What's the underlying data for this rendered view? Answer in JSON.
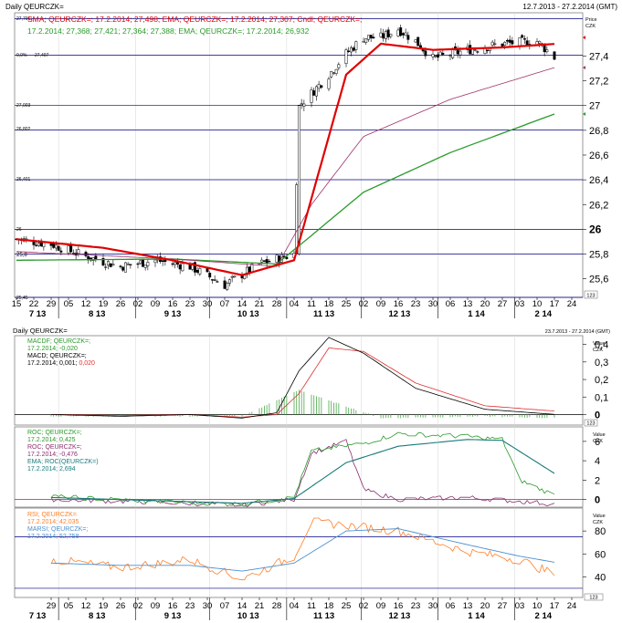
{
  "header": {
    "title": "Daily QEURCZK=",
    "date_range": "12.7.2013 - 27.2.2014 (GMT)"
  },
  "price_panel": {
    "legend_line1": "SMA; QEURCZK=; 17.2.2014; 27,498; EMA; QEURCZK=; 17.2.2014; 27,307; Cndl; QEURCZK=;",
    "legend_line2": "17.2.2014; 27,368; 27,421; 27,364; 27,388; EMA; QEURCZK=; 17.2.2014; 26,932",
    "unit_label_1": "Price",
    "unit_label_2": "CZK",
    "y_ticks": [
      "27,4",
      "27,2",
      "27",
      "26,8",
      "26,6",
      "26,4",
      "26,2",
      "26",
      "25,8",
      "25,6"
    ],
    "level_labels": [
      "27,701",
      "27,407",
      "27,003",
      "26,802",
      "26,401",
      "26",
      "25,8",
      "25,45"
    ],
    "fib_label": "0,0%",
    "scale_box": "123"
  },
  "date_axis_top": {
    "days": [
      "15",
      "22",
      "29",
      "05",
      "12",
      "19",
      "26",
      "02",
      "09",
      "16",
      "23",
      "30",
      "07",
      "14",
      "21",
      "28",
      "04",
      "11",
      "18",
      "25",
      "02",
      "09",
      "16",
      "23",
      "30",
      "06",
      "13",
      "20",
      "27",
      "03",
      "10",
      "17",
      "24"
    ],
    "months": [
      "7 13",
      "8 13",
      "9 13",
      "10 13",
      "11 13",
      "12 13",
      "1 14",
      "2 14"
    ]
  },
  "macd_panel": {
    "title": "Daily QEURCZK=",
    "date_range": "23.7.2013 - 27.2.2014 (GMT)",
    "legend_line1": "MACDF; QEURCZK=;",
    "legend_line2": "17.2.2014; -0,020",
    "legend_line3": "MACD; QEURCZK=;",
    "legend_line4": "17.2.2014; 0,001; 0,020",
    "unit_label_1": "Value",
    "unit_label_2": "CZK",
    "y_ticks": [
      "0,4",
      "0,3",
      "0,2",
      "0,1",
      "0"
    ],
    "scale_box": "123"
  },
  "roc_panel": {
    "legend_line1": "ROC; QEURCZK=;",
    "legend_line2": "17.2.2014; 0,425",
    "legend_line3": "ROC; QEURCZK=;",
    "legend_line4": "17.2.2014; -0,476",
    "legend_line5": "EMA; ROC(QEURCZK=)",
    "legend_line6": "17.2.2014; 2,694",
    "unit_label_1": "Value",
    "unit_label_2": "CZK",
    "y_ticks": [
      "6",
      "4",
      "2",
      "0"
    ],
    "scale_box": "123"
  },
  "rsi_panel": {
    "legend_line1": "RSI; QEURCZK=",
    "legend_line2": "17.2.2014; 42,035",
    "legend_line3": "MARSI; QEURCZK=;",
    "legend_line4": "17.2.2014; 52,758",
    "unit_label_1": "Value",
    "unit_label_2": "CZK",
    "y_ticks": [
      "80",
      "60",
      "40"
    ],
    "scale_box": "123"
  },
  "date_axis_bottom": {
    "days": [
      "29",
      "05",
      "12",
      "19",
      "26",
      "02",
      "09",
      "16",
      "23",
      "30",
      "07",
      "14",
      "21",
      "28",
      "04",
      "11",
      "18",
      "25",
      "02",
      "09",
      "16",
      "23",
      "30",
      "06",
      "13",
      "20",
      "27",
      "03",
      "10",
      "17",
      "24"
    ],
    "months": [
      "7 13",
      "8 13",
      "9 13",
      "10 13",
      "11 13",
      "12 13",
      "1 14",
      "2 14"
    ]
  },
  "colors": {
    "sma": "#e00000",
    "ema_short": "#a0306a",
    "ema_long": "#2a9a2a",
    "candle": "#000000",
    "macd": "#000000",
    "macd_signal": "#e03030",
    "macd_hist": "#4aa84a",
    "roc1": "#2a9a2a",
    "roc2": "#8a3070",
    "roc_ema": "#1a7a7a",
    "rsi": "#ff7f27",
    "marsi": "#4a90d0",
    "hline": "#000080",
    "grid": "#c8c8c8"
  },
  "chart_data": [
    {
      "type": "line",
      "subtype": "candlestick",
      "title": "Daily QEURCZK=",
      "ylabel": "Price CZK",
      "ylim": [
        25.45,
        27.75
      ],
      "x_range": [
        "15.7.2013",
        "24.2.2014"
      ],
      "series": [
        {
          "name": "Cndl; QEURCZK= (close)",
          "x": [
            "15.7.2013",
            "29.7.2013",
            "12.8.2013",
            "26.8.2013",
            "09.9.2013",
            "23.9.2013",
            "07.10.2013",
            "21.10.2013",
            "04.11.2013",
            "06.11.2013",
            "11.11.2013",
            "18.11.2013",
            "25.11.2013",
            "02.12.2013",
            "09.12.2013",
            "16.12.2013",
            "23.12.2013",
            "30.12.2013",
            "13.1.2014",
            "27.1.2014",
            "10.2.2014",
            "17.2.2014"
          ],
          "values": [
            25.92,
            25.88,
            25.78,
            25.7,
            25.75,
            25.7,
            25.55,
            25.72,
            25.8,
            27.0,
            27.1,
            27.25,
            27.42,
            27.55,
            27.55,
            27.62,
            27.52,
            27.38,
            27.45,
            27.5,
            27.52,
            27.39
          ]
        },
        {
          "name": "SMA; QEURCZK=",
          "x": [
            "15.7.2013",
            "19.8.2013",
            "16.9.2013",
            "14.10.2013",
            "04.11.2013",
            "25.11.2013",
            "09.12.2013",
            "30.12.2013",
            "27.1.2014",
            "17.2.2014"
          ],
          "values": [
            25.92,
            25.85,
            25.75,
            25.63,
            25.75,
            27.25,
            27.5,
            27.45,
            27.47,
            27.498
          ]
        },
        {
          "name": "EMA; QEURCZK= (27,307)",
          "x": [
            "15.7.2013",
            "16.9.2013",
            "28.10.2013",
            "11.11.2013",
            "02.12.2013",
            "06.1.2014",
            "17.2.2014"
          ],
          "values": [
            25.82,
            25.76,
            25.7,
            26.2,
            26.75,
            27.05,
            27.307
          ]
        },
        {
          "name": "EMA; QEURCZK= (26,932)",
          "x": [
            "15.7.2013",
            "16.9.2013",
            "28.10.2013",
            "11.11.2013",
            "02.12.2013",
            "06.1.2014",
            "17.2.2014"
          ],
          "values": [
            25.75,
            25.76,
            25.72,
            25.95,
            26.3,
            26.62,
            26.932
          ]
        }
      ],
      "horizontal_levels": [
        27.701,
        27.407,
        27.003,
        26.802,
        26.401,
        26.0,
        25.8,
        25.45
      ]
    },
    {
      "type": "line",
      "title": "MACD",
      "ylabel": "Value CZK",
      "ylim": [
        -0.06,
        0.45
      ],
      "x_range": [
        "23.7.2013",
        "24.2.2014"
      ],
      "series": [
        {
          "name": "MACD; QEURCZK=",
          "x": [
            "29.7.2013",
            "26.8.2013",
            "23.9.2013",
            "14.10.2013",
            "28.10.2013",
            "06.11.2013",
            "18.11.2013",
            "02.12.2013",
            "23.12.2013",
            "20.1.2014",
            "17.2.2014"
          ],
          "values": [
            0.0,
            -0.01,
            0.0,
            -0.02,
            0.01,
            0.25,
            0.44,
            0.35,
            0.15,
            0.03,
            0.001
          ]
        },
        {
          "name": "MACD signal",
          "x": [
            "29.7.2013",
            "26.8.2013",
            "23.9.2013",
            "14.10.2013",
            "28.10.2013",
            "06.11.2013",
            "18.11.2013",
            "02.12.2013",
            "23.12.2013",
            "20.1.2014",
            "17.2.2014"
          ],
          "values": [
            0.0,
            -0.005,
            0.0,
            -0.015,
            0.0,
            0.12,
            0.38,
            0.36,
            0.18,
            0.05,
            0.02
          ]
        },
        {
          "name": "MACDF; QEURCZK=",
          "x": [
            "14.10.2013",
            "06.11.2013",
            "18.11.2013",
            "09.12.2013",
            "20.1.2014",
            "17.2.2014"
          ],
          "values": [
            -0.01,
            0.14,
            0.08,
            -0.02,
            -0.01,
            -0.02
          ]
        }
      ]
    },
    {
      "type": "line",
      "title": "ROC",
      "ylabel": "Value CZK",
      "ylim": [
        -0.8,
        7.5
      ],
      "series": [
        {
          "name": "ROC; QEURCZK= (0,425)",
          "x": [
            "29.7.2013",
            "09.9.2013",
            "14.10.2013",
            "04.11.2013",
            "11.11.2013",
            "02.12.2013",
            "16.12.2013",
            "13.1.2014",
            "27.1.2014",
            "03.2.2014",
            "17.2.2014"
          ],
          "values": [
            0.3,
            -0.2,
            -0.5,
            0.2,
            5.0,
            5.8,
            6.8,
            6.5,
            6.2,
            2.0,
            0.425
          ]
        },
        {
          "name": "ROC; QEURCZK= (-0,476)",
          "x": [
            "29.7.2013",
            "09.9.2013",
            "14.10.2013",
            "04.11.2013",
            "11.11.2013",
            "25.11.2013",
            "02.12.2013",
            "16.12.2013",
            "13.1.2014",
            "17.2.2014"
          ],
          "values": [
            0.0,
            -0.3,
            -0.6,
            0.0,
            4.8,
            6.0,
            1.0,
            0.0,
            0.2,
            -0.476
          ]
        },
        {
          "name": "EMA; ROC(QEURCZK=)",
          "x": [
            "29.7.2013",
            "14.10.2013",
            "04.11.2013",
            "25.11.2013",
            "16.12.2013",
            "13.1.2014",
            "27.1.2014",
            "17.2.2014"
          ],
          "values": [
            0.2,
            -0.4,
            0.1,
            3.8,
            5.5,
            6.2,
            6.1,
            2.694
          ]
        }
      ]
    },
    {
      "type": "line",
      "title": "RSI",
      "ylabel": "Value CZK",
      "ylim": [
        22,
        100
      ],
      "series": [
        {
          "name": "RSI; QEURCZK=",
          "x": [
            "29.7.2013",
            "26.8.2013",
            "23.9.2013",
            "14.10.2013",
            "04.11.2013",
            "11.11.2013",
            "25.11.2013",
            "16.12.2013",
            "13.1.2014",
            "03.2.2014",
            "17.2.2014"
          ],
          "values": [
            55,
            48,
            55,
            38,
            58,
            88,
            85,
            80,
            62,
            55,
            42.035
          ]
        },
        {
          "name": "MARSI; QEURCZK=",
          "x": [
            "29.7.2013",
            "26.8.2013",
            "23.9.2013",
            "14.10.2013",
            "04.11.2013",
            "25.11.2013",
            "16.12.2013",
            "13.1.2014",
            "03.2.2014",
            "17.2.2014"
          ],
          "values": [
            52,
            50,
            50,
            45,
            52,
            80,
            82,
            68,
            58,
            52.758
          ]
        }
      ],
      "horizontal_levels": [
        75,
        30
      ]
    }
  ]
}
